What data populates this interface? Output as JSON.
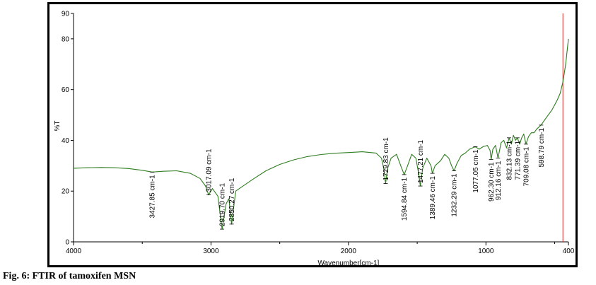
{
  "caption": "Fig. 6: FTIR of tamoxifen MSN",
  "colors": {
    "spectrum": "#2e7d1f",
    "cursor": "#e0302a",
    "axis": "#000000"
  },
  "chart_data": {
    "type": "line",
    "title": "",
    "xlabel": "Wavenumber[cm-1]",
    "ylabel": "%T",
    "xlim": [
      4000,
      400
    ],
    "ylim": [
      0,
      90
    ],
    "x_reversed": true,
    "grid": false,
    "legend": "none",
    "xticks": [
      "4000",
      "3000",
      "2000",
      "1000",
      "400"
    ],
    "yticks": [
      "0",
      "20",
      "40",
      "60",
      "80",
      "90"
    ],
    "cursor_line_x": 440,
    "series": [
      {
        "x": [
          4000,
          3900,
          3800,
          3700,
          3600,
          3500,
          3427.85,
          3350,
          3250,
          3150,
          3080,
          3040,
          3017.09,
          2990,
          2950,
          2919.7,
          2890,
          2870,
          2850.27,
          2820,
          2700,
          2600,
          2500,
          2400,
          2300,
          2200,
          2100,
          2000,
          1900,
          1800,
          1760,
          1740,
          1729.83,
          1715,
          1690,
          1650,
          1620,
          1594.84,
          1570,
          1540,
          1510,
          1490,
          1477.21,
          1460,
          1430,
          1400,
          1389.46,
          1370,
          1330,
          1300,
          1270,
          1250,
          1232.29,
          1210,
          1180,
          1150,
          1120,
          1077.05,
          1050,
          1020,
          990,
          970,
          962.3,
          950,
          930,
          912.16,
          890,
          870,
          850,
          832.13,
          815,
          800,
          785,
          771.39,
          755,
          740,
          725,
          709.08,
          690,
          670,
          650,
          630,
          598.79,
          580,
          560,
          540,
          520,
          500,
          480,
          460,
          440,
          420,
          400
        ],
        "y": [
          29,
          29.2,
          29.3,
          29.2,
          28.9,
          28.2,
          27.5,
          27.8,
          28,
          27,
          25,
          22,
          18.5,
          21,
          18,
          5,
          15,
          17,
          7,
          20,
          24.5,
          28,
          30.5,
          32.3,
          33.6,
          34.4,
          34.9,
          35.2,
          35.5,
          35,
          33,
          28,
          23,
          29,
          33,
          34.5,
          30,
          26.5,
          30,
          34.5,
          33,
          27,
          22,
          29,
          33,
          30,
          27,
          30,
          32,
          34.5,
          33,
          30,
          28,
          31,
          34,
          35,
          36.5,
          37.5,
          36.5,
          37.5,
          38,
          36,
          32.5,
          36.5,
          38,
          33,
          39,
          40,
          37,
          41,
          38.5,
          42,
          40,
          41,
          38.5,
          41,
          42.5,
          38.5,
          41.5,
          43,
          43,
          44.5,
          46,
          47.5,
          49,
          50.5,
          52,
          54,
          56,
          58.5,
          63,
          70,
          80
        ]
      }
    ],
    "annotations": [
      "3427.85 cm-1",
      "3017.09 cm-1",
      "2919.70 cm-1",
      "2850.27 cm-1",
      "1729.83 cm-1",
      "1594.84 cm-1",
      "1477.21 cm-1",
      "1389.46 cm-1",
      "1232.29 cm-1",
      "1077.05 cm-1",
      "962.30 cm-1",
      "912.16 cm-1",
      "832.13 cm-1",
      "771.39 cm-1",
      "709.08 cm-1",
      "598.79 cm-1"
    ]
  }
}
